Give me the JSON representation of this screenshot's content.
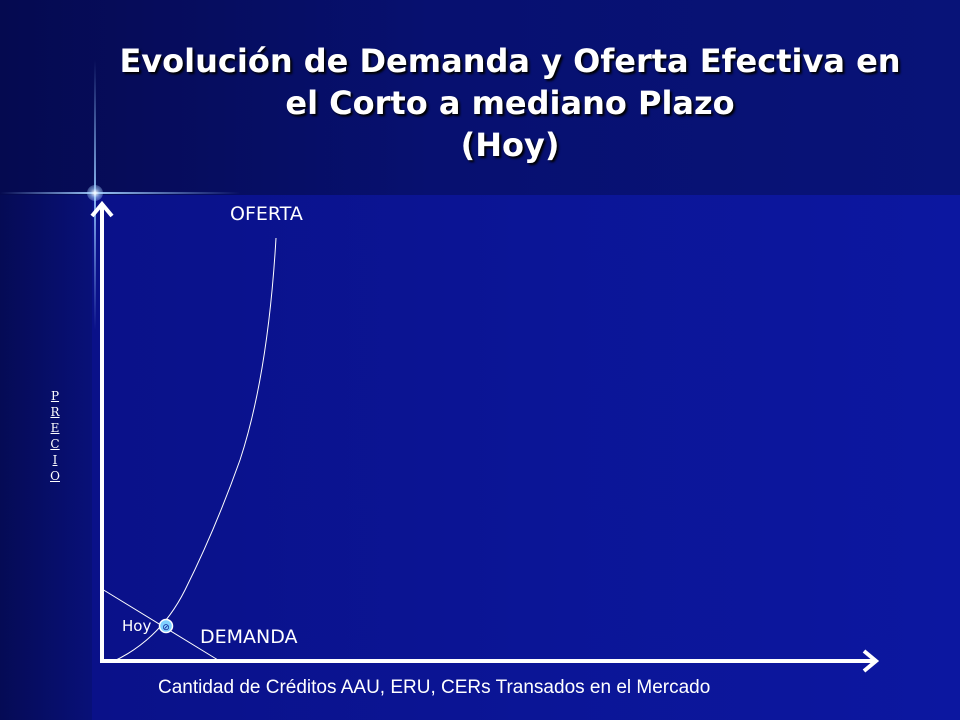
{
  "title": {
    "line1": "Evolución de Demanda y Oferta Efectiva en",
    "line2": "el Corto a mediano Plazo",
    "line3": "(Hoy)"
  },
  "diagram": {
    "y_axis_label": "PRECIO",
    "x_axis_label": "Cantidad de Créditos AAU, ERU, CERs Transados en el Mercado",
    "supply_label": "OFERTA",
    "demand_label": "DEMANDA",
    "equilibrium_label": "Hoy",
    "curve_color": "#ffffff",
    "marker_color": "#7fd0ff"
  }
}
